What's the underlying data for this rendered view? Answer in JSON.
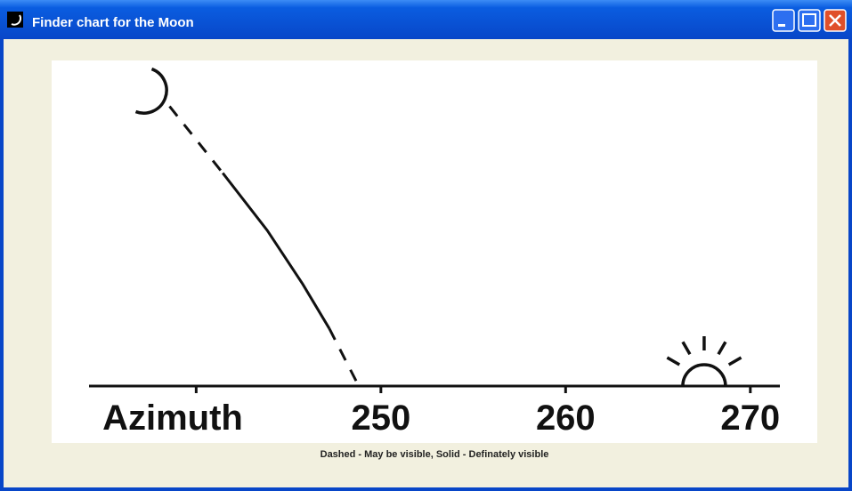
{
  "window": {
    "title": "Finder chart for the Moon"
  },
  "chart_data": {
    "type": "line",
    "xlabel": "Azimuth",
    "caption": "Dashed - May be visible, Solid - Definately visible",
    "xlim": [
      234.2,
      271.6
    ],
    "ylim": [
      0,
      17
    ],
    "xticks": [
      250,
      260,
      270
    ],
    "xticks_unlabeled": [
      240
    ],
    "x": [
      238.56,
      241.44,
      243.85,
      245.77,
      247.21,
      248.8
    ],
    "series": [
      {
        "style": "dashed",
        "color": "#111111",
        "values": [
          15.1,
          11.5,
          null,
          null,
          3.1,
          0
        ]
      },
      {
        "style": "solid",
        "color": "#111111",
        "values": [
          null,
          11.5,
          8.4,
          5.5,
          3.1,
          null
        ]
      }
    ],
    "sun_azimuth": 267.5
  }
}
